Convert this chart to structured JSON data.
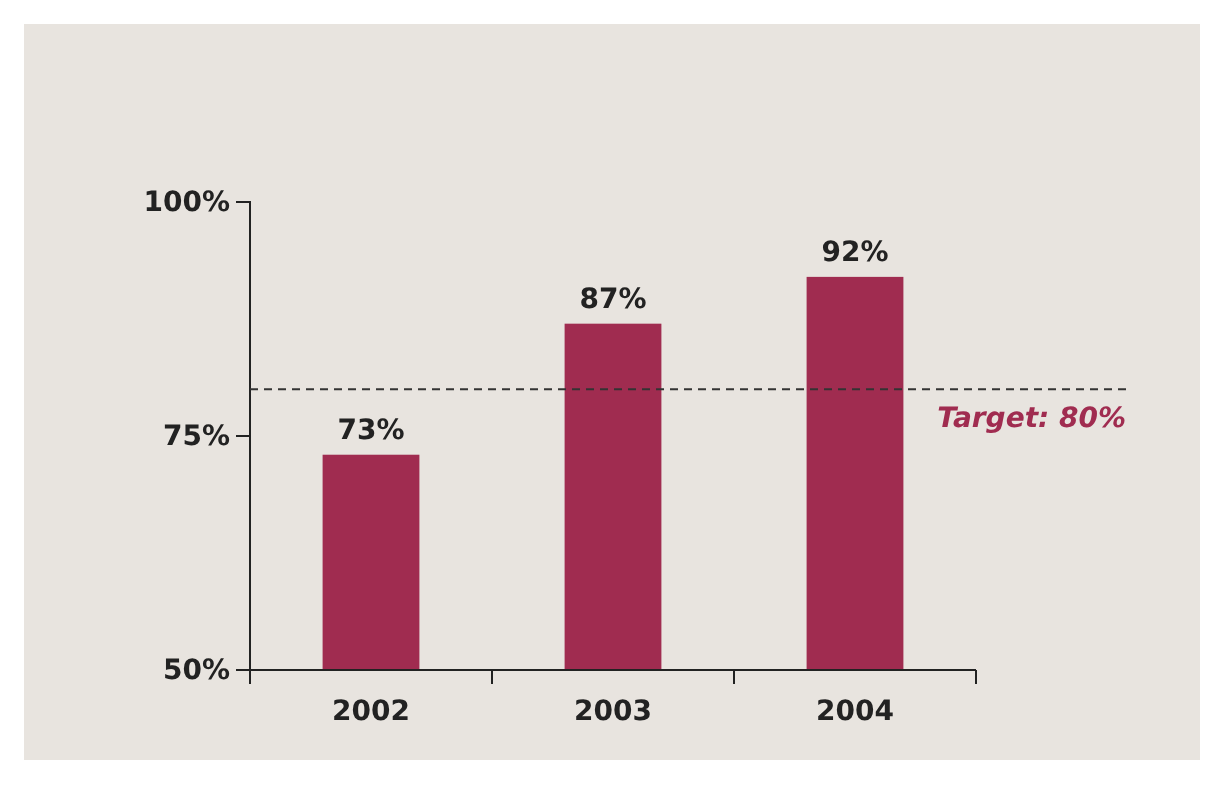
{
  "chart_data": {
    "type": "bar",
    "categories": [
      "2002",
      "2003",
      "2004"
    ],
    "values": [
      73,
      87,
      92
    ],
    "color": "#a02c50",
    "value_labels": [
      "73%",
      "87%",
      "92%"
    ],
    "ylim": [
      50,
      100
    ],
    "yticks": [
      {
        "value": 50,
        "label": "50%"
      },
      {
        "value": 75,
        "label": "75%"
      },
      {
        "value": 100,
        "label": "100%"
      }
    ],
    "ref_lines": [
      {
        "axis": "y",
        "value": 80,
        "label": "Target: 80%",
        "color": "#333333",
        "line_style": "dashed"
      }
    ],
    "grid": false
  }
}
